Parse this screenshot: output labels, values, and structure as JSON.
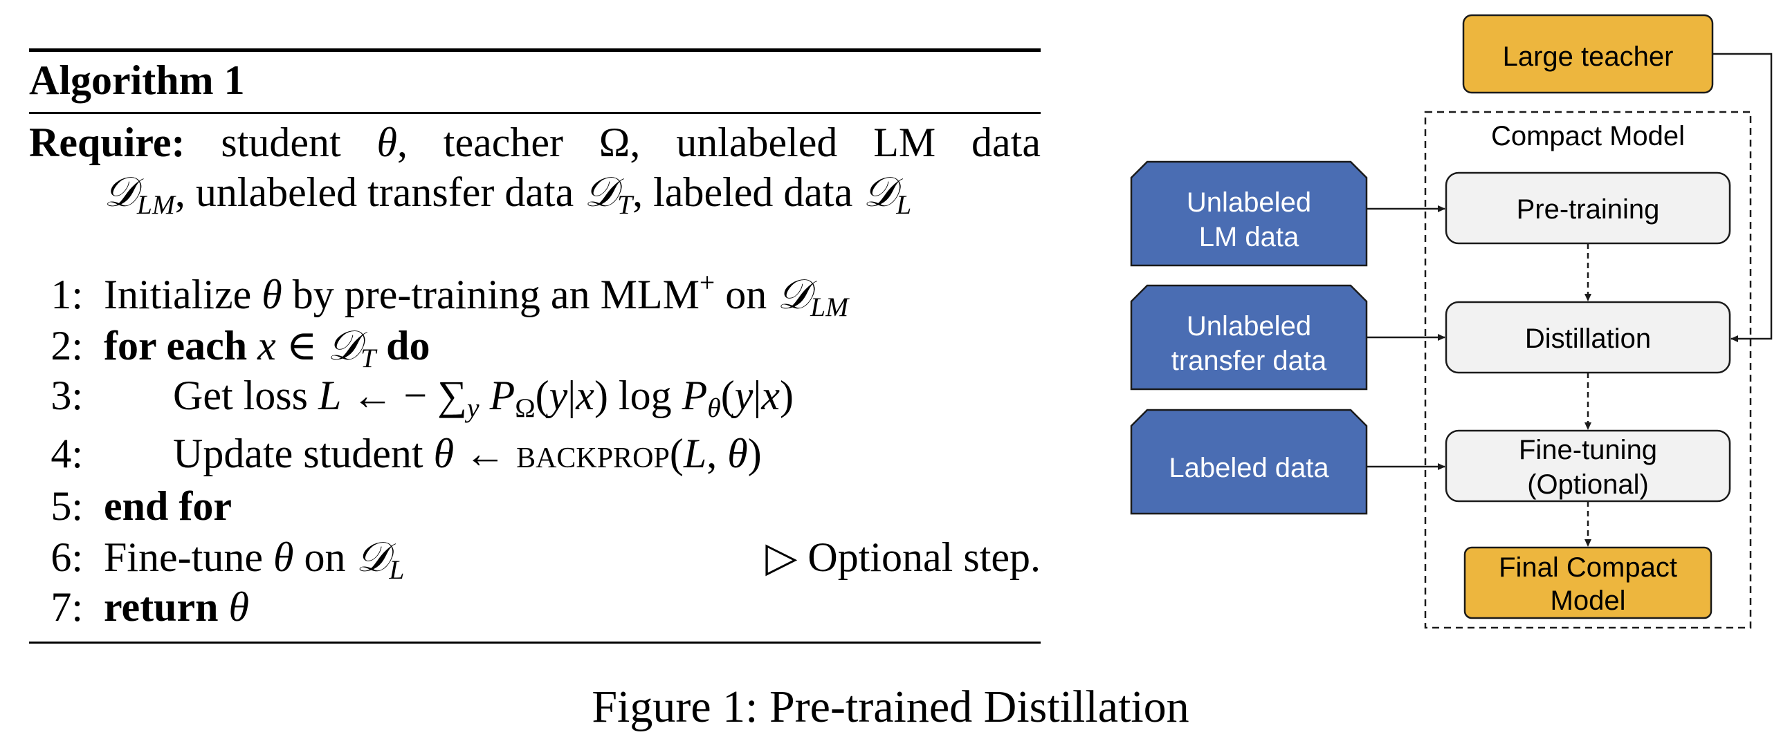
{
  "algorithm": {
    "title": "Algorithm 1",
    "require_label": "Require:",
    "require_line1": "student θ, teacher Ω, unlabeled LM data",
    "require_line2": "𝒟_LM, unlabeled transfer data 𝒟_T, labeled data 𝒟_L",
    "steps": [
      {
        "num": "1:",
        "text": "Initialize θ by pre-training an MLM+ on 𝒟_LM"
      },
      {
        "num": "2:",
        "text": "for each x ∈ 𝒟_T do"
      },
      {
        "num": "3:",
        "text": "Get loss L ← − ∑y PΩ(y|x) log Pθ(y|x)"
      },
      {
        "num": "4:",
        "text": "Update student θ ← BACKPROP(L, θ)"
      },
      {
        "num": "5:",
        "text": "end for"
      },
      {
        "num": "6:",
        "text": "Fine-tune θ on 𝒟_L"
      },
      {
        "num": "7:",
        "text": "return θ"
      }
    ],
    "step6_comment": "▷ Optional step."
  },
  "diagram": {
    "teacher": "Large teacher",
    "compact_model_label": "Compact Model",
    "inputs": [
      {
        "line1": "Unlabeled",
        "line2": "LM data"
      },
      {
        "line1": "Unlabeled",
        "line2": "transfer data"
      },
      {
        "line1": "Labeled data",
        "line2": ""
      }
    ],
    "stages": [
      {
        "line1": "Pre-training",
        "line2": ""
      },
      {
        "line1": "Distillation",
        "line2": ""
      },
      {
        "line1": "Fine-tuning",
        "line2": "(Optional)"
      }
    ],
    "output": {
      "line1": "Final Compact",
      "line2": "Model"
    },
    "colors": {
      "input_fill": "#4a6db3",
      "teacher_fill": "#edb63e",
      "stage_fill": "#f2f2f2",
      "stroke": "#1a1a1a"
    }
  },
  "caption": "Figure 1: Pre-trained Distillation"
}
